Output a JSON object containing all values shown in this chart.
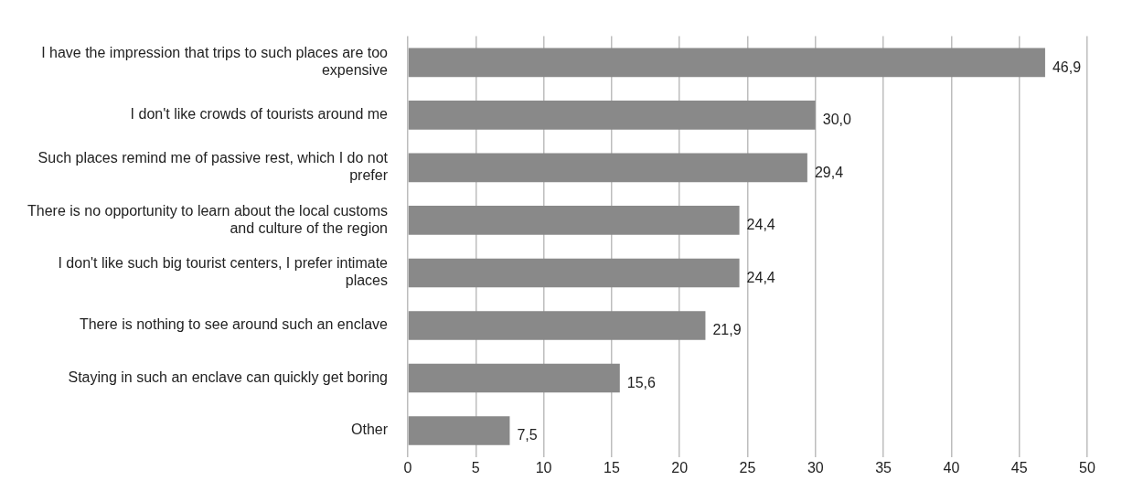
{
  "chart_data": {
    "type": "bar",
    "orientation": "horizontal",
    "categories": [
      "I have the impression that trips to such places are too expensive",
      "I don't like crowds of tourists around me",
      "Such places remind me of passive rest, which I do not prefer",
      "There is no opportunity to learn about the local customs and culture of the region",
      "I don't like such big tourist centers, I prefer intimate places",
      "There is nothing to see around such an enclave",
      "Staying in such an enclave can quickly get boring",
      "Other"
    ],
    "values": [
      46.9,
      30.0,
      29.4,
      24.4,
      24.4,
      21.9,
      15.6,
      7.5
    ],
    "value_labels": [
      "46,9",
      "30,0",
      "29,4",
      "24,4",
      "24,4",
      "21,9",
      "15,6",
      "7,5"
    ],
    "color": "#898989",
    "xlim": [
      0,
      50
    ],
    "xticks": [
      0,
      5,
      10,
      15,
      20,
      25,
      30,
      35,
      40,
      45,
      50
    ],
    "grid": "x"
  }
}
